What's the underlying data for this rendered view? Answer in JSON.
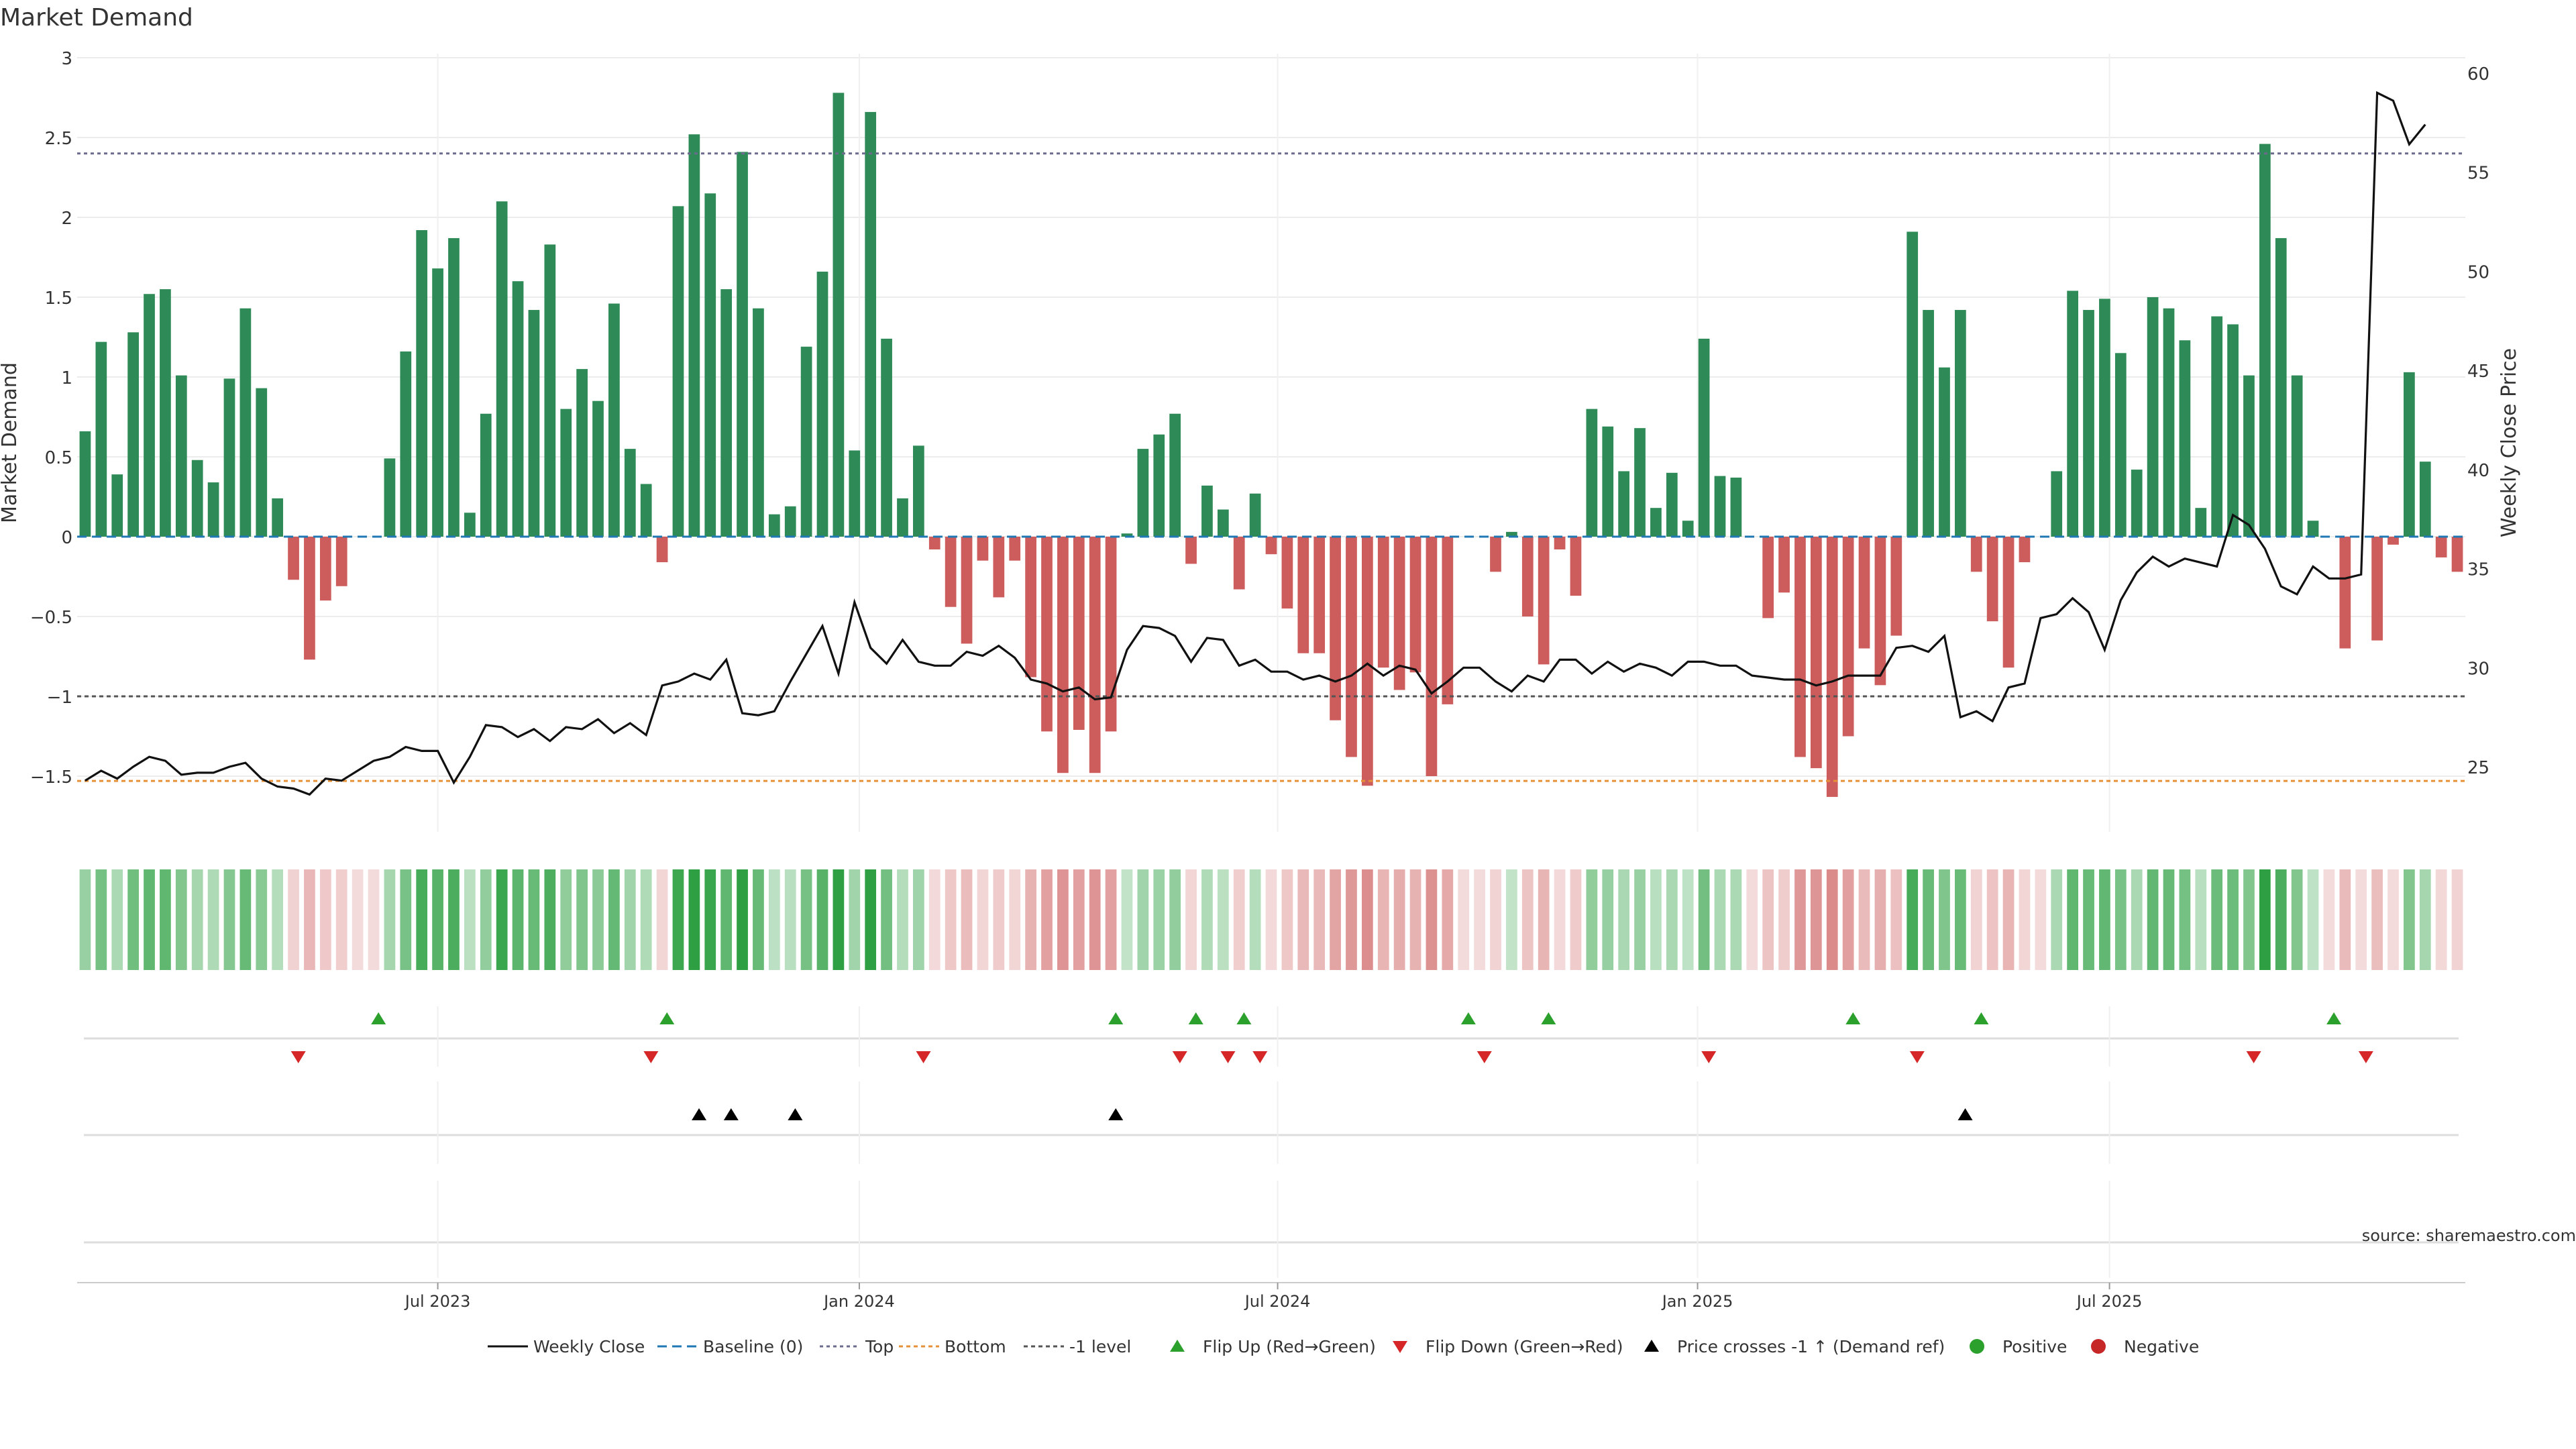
{
  "chart_data": {
    "type": "bar",
    "title": "Market Demand",
    "source": "source: sharemaestro.com",
    "ylabel": "Market Demand",
    "y2label": "Weekly Close Price",
    "ylim": [
      -1.85,
      3.0
    ],
    "y2lim": [
      22.0,
      61.0
    ],
    "yticks": [
      -1.5,
      -1,
      -0.5,
      0,
      0.5,
      1,
      1.5,
      2,
      2.5,
      3
    ],
    "yticklabels": [
      "−1.5",
      "−1",
      "−0.5",
      "0",
      "0.5",
      "1",
      "1.5",
      "2",
      "2.5",
      "3"
    ],
    "y2ticks": [
      25,
      30,
      35,
      40,
      45,
      50,
      55,
      60
    ],
    "y2ticklabels": [
      "25",
      "30",
      "35",
      "40",
      "45",
      "50",
      "55",
      "60"
    ],
    "x_week_range": [
      0,
      144
    ],
    "xticks": [
      {
        "week": 22,
        "label": "Jul 2023"
      },
      {
        "week": 48.3,
        "label": "Jan 2024"
      },
      {
        "week": 74.4,
        "label": "Jul 2024"
      },
      {
        "week": 100.6,
        "label": "Jan 2025"
      },
      {
        "week": 126.3,
        "label": "Jul 2025"
      }
    ],
    "reference_lines": {
      "top": 2.4,
      "bottom": -1.53,
      "minus_one": -1.0,
      "baseline": 0
    },
    "colors": {
      "positive": "#2e8b57",
      "negative": "#cd5c5c",
      "price": "#111111",
      "baseline": "#1f77b4",
      "top": "#6b6b8e",
      "bottom": "#e69138",
      "minus_one": "#555555",
      "flip_up": "#2ca02c",
      "flip_down": "#d62728",
      "cross": "#000000"
    },
    "demand": [
      0.66,
      1.22,
      0.39,
      1.28,
      1.52,
      1.55,
      1.01,
      0.48,
      0.34,
      0.99,
      1.43,
      0.93,
      0.24,
      -0.27,
      -0.77,
      -0.4,
      -0.31,
      0,
      0,
      0.49,
      1.16,
      1.92,
      1.68,
      1.87,
      0.15,
      0.77,
      2.1,
      1.6,
      1.42,
      1.83,
      0.8,
      1.05,
      0.85,
      1.46,
      0.55,
      0.33,
      -0.16,
      2.07,
      2.52,
      2.15,
      1.55,
      2.41,
      1.43,
      0.14,
      0.19,
      1.19,
      1.66,
      2.78,
      0.54,
      2.66,
      1.24,
      0.24,
      0.57,
      -0.08,
      -0.44,
      -0.67,
      -0.15,
      -0.38,
      -0.15,
      -0.88,
      -1.22,
      -1.48,
      -1.21,
      -1.48,
      -1.22,
      0.02,
      0.55,
      0.64,
      0.77,
      -0.17,
      0.32,
      0.17,
      -0.33,
      0.27,
      -0.11,
      -0.45,
      -0.73,
      -0.73,
      -1.15,
      -1.38,
      -1.56,
      -0.82,
      -0.96,
      -0.85,
      -1.5,
      -1.05,
      0,
      0,
      -0.22,
      0.03,
      -0.5,
      -0.8,
      -0.08,
      -0.37,
      0.8,
      0.69,
      0.41,
      0.68,
      0.18,
      0.4,
      0.1,
      1.24,
      0.38,
      0.37,
      0,
      -0.51,
      -0.35,
      -1.38,
      -1.45,
      -1.63,
      -1.25,
      -0.7,
      -0.93,
      -0.62,
      1.91,
      1.42,
      1.06,
      1.42,
      -0.22,
      -0.53,
      -0.82,
      -0.16,
      0,
      0.41,
      1.54,
      1.42,
      1.49,
      1.15,
      0.42,
      1.5,
      1.43,
      1.23,
      0.18,
      1.38,
      1.33,
      1.01,
      2.46,
      1.87,
      1.01,
      0.1,
      0,
      -0.7,
      0,
      -0.65,
      -0.05,
      1.03,
      0.47,
      -0.13,
      -0.22
    ],
    "weekly_close": [
      24.3,
      24.8,
      24.4,
      25.0,
      25.5,
      25.3,
      24.6,
      24.7,
      24.7,
      25.0,
      25.2,
      24.4,
      24.0,
      23.9,
      23.6,
      24.4,
      24.3,
      24.8,
      25.3,
      25.5,
      26.0,
      25.8,
      25.8,
      24.2,
      25.5,
      27.1,
      27.0,
      26.5,
      26.9,
      26.3,
      27.0,
      26.9,
      27.4,
      26.7,
      27.2,
      26.6,
      29.1,
      29.3,
      29.7,
      29.4,
      30.4,
      27.7,
      27.6,
      27.8,
      29.3,
      30.7,
      32.1,
      29.7,
      33.3,
      31.0,
      30.2,
      31.4,
      30.3,
      30.1,
      30.1,
      30.8,
      30.6,
      31.1,
      30.5,
      29.4,
      29.2,
      28.8,
      29.0,
      28.4,
      28.5,
      30.9,
      32.1,
      32.0,
      31.6,
      30.3,
      31.5,
      31.4,
      30.1,
      30.4,
      29.8,
      29.8,
      29.4,
      29.6,
      29.3,
      29.6,
      30.2,
      29.6,
      30.1,
      29.9,
      28.7,
      29.3,
      30.0,
      30.0,
      29.3,
      28.8,
      29.6,
      29.3,
      30.4,
      30.4,
      29.7,
      30.3,
      29.8,
      30.2,
      30.0,
      29.6,
      30.3,
      30.3,
      30.1,
      30.1,
      29.6,
      29.5,
      29.4,
      29.4,
      29.1,
      29.3,
      29.6,
      29.6,
      29.6,
      31.0,
      31.1,
      30.8,
      31.6,
      27.5,
      27.8,
      27.3,
      29.0,
      29.2,
      32.5,
      32.7,
      33.5,
      32.8,
      30.9,
      33.4,
      34.8,
      35.6,
      35.1,
      35.5,
      35.3,
      35.1,
      37.7,
      37.2,
      36.0,
      34.1,
      33.7,
      35.1,
      34.5,
      34.5,
      34.7,
      59.0,
      58.6,
      56.4,
      57.4
    ],
    "flip_up_weeks": [
      18.3,
      36.3,
      64.3,
      69.3,
      72.3,
      86.3,
      91.3,
      110.3,
      118.3,
      140.3
    ],
    "flip_down_weeks": [
      13.3,
      35.3,
      52.3,
      68.3,
      71.3,
      73.3,
      87.3,
      101.3,
      114.3,
      135.3,
      142.3
    ],
    "cross_weeks": [
      38.3,
      40.3,
      44.3,
      64.3,
      117.3
    ],
    "legend": [
      {
        "label": "Weekly Close"
      },
      {
        "label": "Baseline (0)"
      },
      {
        "label": "Top"
      },
      {
        "label": "Bottom"
      },
      {
        "label": "-1 level"
      },
      {
        "label": "Flip Up (Red→Green)"
      },
      {
        "label": "Flip Down (Green→Red)"
      },
      {
        "label": "Price crosses -1 ↑ (Demand ref)"
      },
      {
        "label": "Positive"
      },
      {
        "label": "Negative"
      }
    ]
  }
}
